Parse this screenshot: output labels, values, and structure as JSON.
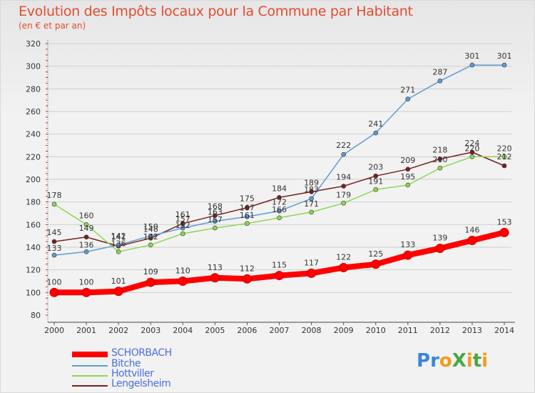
{
  "header": {
    "title": "Evolution des Impôts locaux pour la Commune par Habitant",
    "subtitle": "(en € et par an)"
  },
  "logo": {
    "text": "ProXiti",
    "letter_colors": [
      "#3a86d6",
      "#3a86d6",
      "#f39a1d",
      "#49a843",
      "#f39a1d",
      "#49a843",
      "#f39a1d"
    ]
  },
  "chart_data": {
    "type": "line",
    "title": "Evolution des Impôts locaux pour la Commune par Habitant",
    "subtitle": "(en € et par an)",
    "xlabel": "",
    "ylabel": "",
    "ylim": [
      80,
      320
    ],
    "yticks": [
      80,
      100,
      120,
      140,
      160,
      180,
      200,
      220,
      240,
      260,
      280,
      300,
      320
    ],
    "categories": [
      "2000",
      "2001",
      "2002",
      "2003",
      "2004",
      "2005",
      "2006",
      "2007",
      "2008",
      "2009",
      "2010",
      "2011",
      "2012",
      "2013",
      "2014"
    ],
    "grid": "horizontal",
    "legend_position": "bottom-left",
    "series": [
      {
        "name": "SCHORBACH",
        "color": "#ff0000",
        "values": [
          100,
          100,
          101,
          109,
          110,
          113,
          112,
          115,
          117,
          122,
          125,
          133,
          139,
          146,
          153
        ]
      },
      {
        "name": "Bitche",
        "color": "#5e9cd3",
        "values": [
          133,
          136,
          142,
          150,
          157,
          163,
          167,
          172,
          183,
          222,
          241,
          271,
          287,
          301,
          301
        ]
      },
      {
        "name": "Hottviller",
        "color": "#8ed653",
        "values": [
          178,
          160,
          136,
          142,
          152,
          157,
          161,
          166,
          171,
          179,
          191,
          195,
          210,
          220,
          220
        ]
      },
      {
        "name": "Lengelsheim",
        "color": "#7a2020",
        "values": [
          145,
          149,
          141,
          148,
          161,
          168,
          175,
          184,
          189,
          194,
          203,
          209,
          218,
          224,
          212
        ]
      }
    ]
  }
}
